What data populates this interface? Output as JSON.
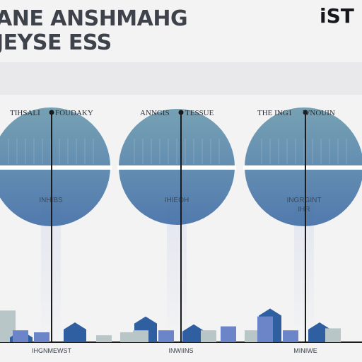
{
  "header": {
    "title_line_1": "ANE ANSHMAHG",
    "title_line_2": "JEYSE ESS",
    "brand": "iST"
  },
  "colors": {
    "text_dark": "#3e434b",
    "circle_top": "#6b9aae",
    "circle_bottom": "#436fa8",
    "bar_dark": "#2f5fa0",
    "bar_mid": "#6c84c8",
    "bar_light": "#b8c6c8",
    "axis": "#1a1a1a"
  },
  "chart_data": [
    {
      "type": "bar",
      "legend": [
        "TIHSALI",
        "FOUDAKY"
      ],
      "center_label": [
        "INHIBS"
      ],
      "footer_label": "IHGNMEWST",
      "series": [
        {
          "values": [
            0.32,
            0.12,
            0.1,
            0.2,
            0.07,
            0.12
          ]
        }
      ],
      "ylim": [
        0,
        1
      ]
    },
    {
      "type": "bar",
      "legend": [
        "ANNGIS",
        "TESSUE"
      ],
      "center_label": [
        "IHIEOH"
      ],
      "footer_label": "INWIINS",
      "series": [
        {
          "values": [
            0.1,
            0.26,
            0.12,
            0.18,
            0.12,
            0.16,
            0.12
          ]
        }
      ],
      "ylim": [
        0,
        1
      ]
    },
    {
      "type": "bar",
      "legend": [
        "THE ING1",
        "WNOUIN"
      ],
      "center_label": [
        "INGRGINT",
        "IHR"
      ],
      "footer_label": "MINIWE",
      "series": [
        {
          "values": [
            0.12,
            0.34,
            0.12,
            0.2,
            0.14,
            0.26
          ]
        }
      ],
      "ylim": [
        0,
        1
      ]
    }
  ]
}
